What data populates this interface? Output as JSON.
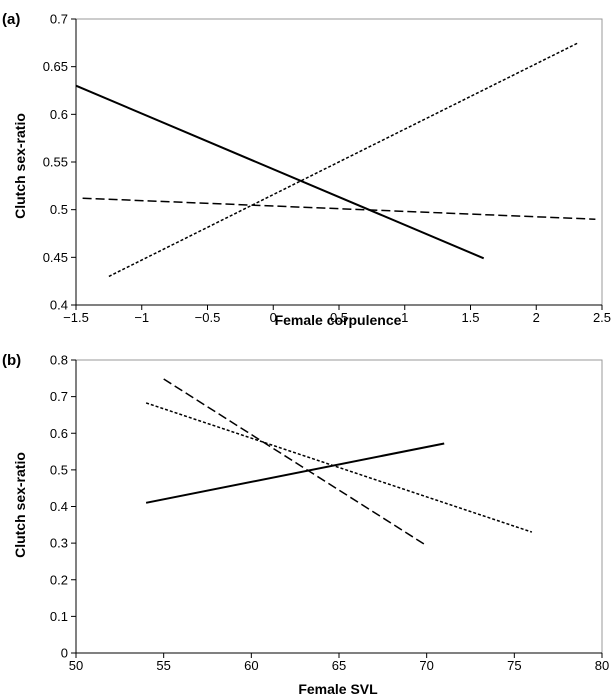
{
  "chart_data": [
    {
      "panel_label": "(a)",
      "type": "line",
      "xlabel": "Female corpulence",
      "ylabel": "Clutch sex-ratio",
      "xlim": [
        -1.5,
        2.5
      ],
      "ylim": [
        0.4,
        0.7
      ],
      "xticks": [
        -1.5,
        -1,
        -0.5,
        0,
        0.5,
        1,
        1.5,
        2,
        2.5
      ],
      "xtick_labels": [
        "−1.5",
        "−1",
        "−0.5",
        "0",
        "0.5",
        "1",
        "1.5",
        "2",
        "2.5"
      ],
      "yticks": [
        0.4,
        0.45,
        0.5,
        0.55,
        0.6,
        0.65,
        0.7
      ],
      "ytick_labels": [
        "0.4",
        "0.45",
        "0.5",
        "0.55",
        "0.6",
        "0.65",
        "0.7"
      ],
      "grid": false,
      "series": [
        {
          "style": "solid",
          "x": [
            -1.5,
            1.6
          ],
          "y": [
            0.63,
            0.449
          ]
        },
        {
          "style": "dashed",
          "x": [
            -1.45,
            2.45
          ],
          "y": [
            0.512,
            0.49
          ]
        },
        {
          "style": "dotted",
          "x": [
            -1.25,
            2.32
          ],
          "y": [
            0.43,
            0.675
          ]
        }
      ]
    },
    {
      "panel_label": "(b)",
      "type": "line",
      "xlabel": "Female SVL",
      "ylabel": "Clutch sex-ratio",
      "xlim": [
        50,
        80
      ],
      "ylim": [
        0,
        0.8
      ],
      "xticks": [
        50,
        55,
        60,
        65,
        70,
        75,
        80
      ],
      "xtick_labels": [
        "50",
        "55",
        "60",
        "65",
        "70",
        "75",
        "80"
      ],
      "yticks": [
        0,
        0.1,
        0.2,
        0.3,
        0.4,
        0.5,
        0.6,
        0.7,
        0.8
      ],
      "ytick_labels": [
        "0",
        "0.1",
        "0.2",
        "0.3",
        "0.4",
        "0.5",
        "0.6",
        "0.7",
        "0.8"
      ],
      "grid": false,
      "series": [
        {
          "style": "solid",
          "x": [
            54,
            71
          ],
          "y": [
            0.41,
            0.572
          ]
        },
        {
          "style": "dashed",
          "x": [
            55,
            70
          ],
          "y": [
            0.748,
            0.293
          ]
        },
        {
          "style": "dotted",
          "x": [
            54,
            76
          ],
          "y": [
            0.683,
            0.33
          ]
        }
      ]
    }
  ]
}
